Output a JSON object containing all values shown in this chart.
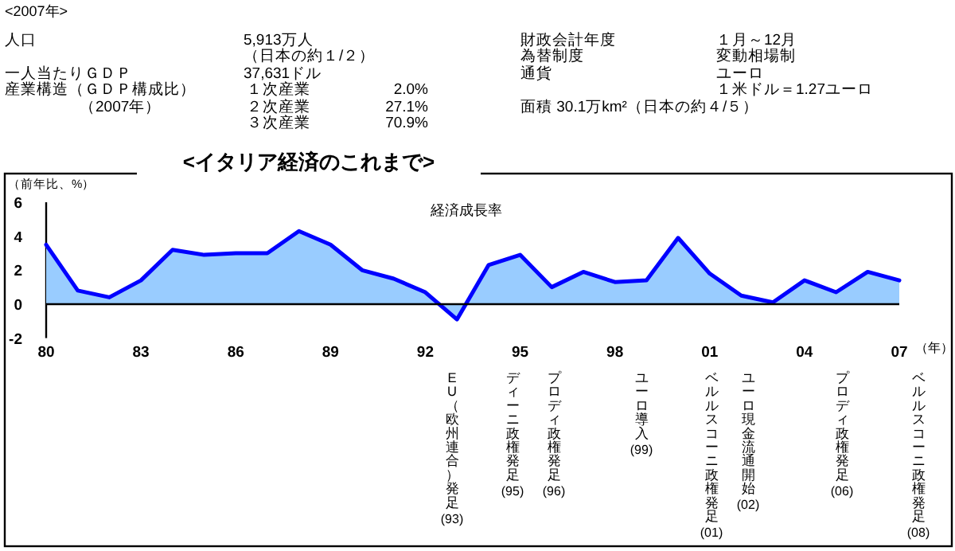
{
  "chart_data": [
    {
      "type": "other",
      "title": "<2007年>",
      "annotations": [
        "人口",
        "5,913万人",
        "財政会計年度",
        "１月～12月",
        "（日本の約１/２）",
        "為替制度",
        "変動相場制",
        "一人当たりＧＤＰ",
        "37,631ドル",
        "通貨",
        "ユーロ",
        "産業構造（ＧＤＰ構成比）",
        "１次産業",
        "2.0%",
        "１米ドル＝1.27ユーロ",
        "（2007年）",
        "２次産業",
        "27.1%",
        "面積 30.1万km²（日本の約４/５）",
        "３次産業",
        "70.9%"
      ]
    },
    {
      "type": "area",
      "title": "<イタリア経済のこれまで>",
      "ylabel": "（前年比、%）",
      "xlabel": "（年）",
      "x": [
        1980,
        1981,
        1982,
        1983,
        1984,
        1985,
        1986,
        1987,
        1988,
        1989,
        1990,
        1991,
        1992,
        1993,
        1994,
        1995,
        1996,
        1997,
        1998,
        1999,
        2000,
        2001,
        2002,
        2003,
        2004,
        2005,
        2006,
        2007
      ],
      "series": [
        {
          "name": "経済成長率",
          "color": "#0000ff",
          "values": [
            3.5,
            0.8,
            0.4,
            1.4,
            3.2,
            2.9,
            3.0,
            3.0,
            4.3,
            3.5,
            2.0,
            1.5,
            0.7,
            -0.9,
            2.3,
            2.9,
            1.0,
            1.9,
            1.3,
            1.4,
            3.9,
            1.8,
            0.5,
            0.1,
            1.4,
            0.7,
            1.9,
            1.4
          ]
        }
      ],
      "xlim": [
        1980,
        2007
      ],
      "ylim": [
        -2,
        6
      ],
      "yticks": [
        -2,
        0,
        2,
        4,
        6
      ],
      "xticks": [
        {
          "value": 1980,
          "label": "80"
        },
        {
          "value": 1983,
          "label": "83"
        },
        {
          "value": 1986,
          "label": "86"
        },
        {
          "value": 1989,
          "label": "89"
        },
        {
          "value": 1992,
          "label": "92"
        },
        {
          "value": 1995,
          "label": "95"
        },
        {
          "value": 1998,
          "label": "98"
        },
        {
          "value": 2001,
          "label": "01"
        },
        {
          "value": 2004,
          "label": "04"
        },
        {
          "value": 2007,
          "label": "07"
        }
      ],
      "annotations": [
        "EU（欧州連合）発足",
        "(93)",
        "ディーニ政権発足",
        "(95)",
        "プロディ政権発足",
        "(96)",
        "ユーロ導入",
        "(99)",
        "ベルルスコーニ政権発足",
        "(01)",
        "ユーロ現金流通開始",
        "(02)",
        "プロディ政権発足",
        "(06)",
        "ベルルスコーニ政権発足",
        "(08)"
      ]
    }
  ]
}
